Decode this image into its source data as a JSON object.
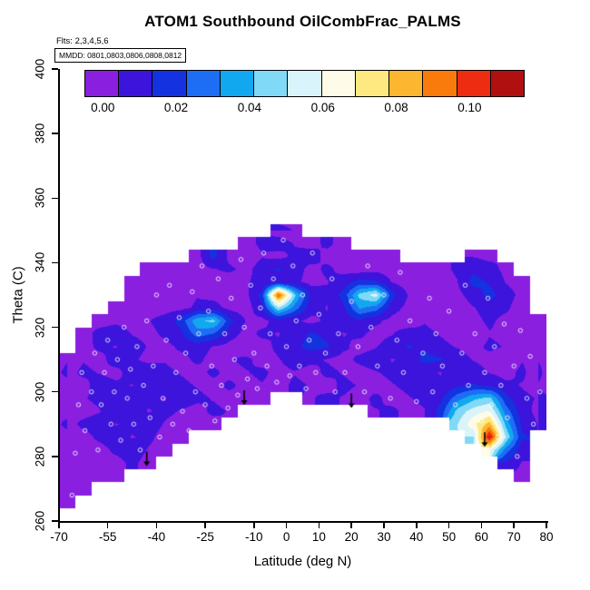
{
  "title": "ATOM1 Southbound OilCombFrac_PALMS",
  "annotations": {
    "flights": "Flts: 2,3,4,5,6",
    "mmdd": "MMDD: 0801,0803,0806,0808,0812"
  },
  "colorbar": {
    "min": 0.0,
    "max": 0.11,
    "colors": [
      "#8A1FE0",
      "#3D14DC",
      "#1432E0",
      "#1E6EF5",
      "#12A8F0",
      "#7FD9F7",
      "#D9F4FA",
      "#FEFBE8",
      "#FDE97F",
      "#FDB62F",
      "#F97B0C",
      "#EE2C12",
      "#B01010"
    ],
    "tick_labels": [
      "0.00",
      "0.02",
      "0.04",
      "0.06",
      "0.08",
      "0.10"
    ],
    "tick_values": [
      0.0,
      0.02,
      0.04,
      0.06,
      0.08,
      0.1
    ]
  },
  "axes": {
    "x": {
      "label": "Latitude (deg N)",
      "ticks": [
        -70,
        -55,
        -40,
        -25,
        -10,
        0,
        10,
        20,
        30,
        40,
        50,
        60,
        70,
        80
      ],
      "range": [
        -70,
        80
      ]
    },
    "y": {
      "label": "Theta (C)",
      "ticks": [
        260,
        280,
        300,
        320,
        340,
        360,
        380,
        400
      ],
      "range": [
        260,
        400
      ]
    }
  },
  "chart_data": {
    "type": "heatmap",
    "title": "ATOM1 Southbound OilCombFrac_PALMS",
    "xlabel": "Latitude (deg N)",
    "ylabel": "Theta (C)",
    "value_name": "OilCombFrac_PALMS",
    "value_range": [
      0.0,
      0.11
    ],
    "x_range": [
      -70,
      80
    ],
    "y_range": [
      260,
      400
    ],
    "lat_centers": [
      -67.5,
      -62.5,
      -57.5,
      -52.5,
      -47.5,
      -42.5,
      -37.5,
      -32.5,
      -27.5,
      -22.5,
      -17.5,
      -12.5,
      -7.5,
      -2.5,
      2.5,
      7.5,
      12.5,
      17.5,
      22.5,
      27.5,
      32.5,
      37.5,
      42.5,
      47.5,
      52.5,
      57.5,
      62.5,
      67.5,
      72.5,
      77.5
    ],
    "theta_centers": [
      350,
      346,
      342,
      338,
      334,
      330,
      326,
      322,
      318,
      314,
      310,
      306,
      302,
      298,
      294,
      290,
      286,
      282,
      278,
      274,
      270,
      266
    ],
    "grid": [
      [
        null,
        null,
        null,
        null,
        null,
        null,
        null,
        null,
        null,
        null,
        null,
        null,
        null,
        0.005,
        0.004,
        null,
        null,
        null,
        null,
        null,
        null,
        null,
        null,
        null,
        null,
        null,
        null,
        null,
        null,
        null
      ],
      [
        null,
        null,
        null,
        null,
        null,
        null,
        null,
        null,
        null,
        null,
        null,
        0.006,
        0.01,
        0.012,
        0.008,
        0.006,
        0.01,
        0.006,
        null,
        null,
        null,
        null,
        null,
        null,
        null,
        null,
        null,
        null,
        null,
        null
      ],
      [
        null,
        null,
        null,
        null,
        null,
        null,
        null,
        null,
        0.005,
        0.02,
        0.006,
        0.004,
        0.008,
        0.006,
        0.01,
        0.012,
        0.006,
        0.008,
        0.005,
        0.004,
        0.006,
        null,
        null,
        null,
        null,
        0.008,
        0.006,
        null,
        null,
        null
      ],
      [
        null,
        null,
        null,
        null,
        null,
        0.004,
        0.006,
        0.004,
        0.005,
        0.008,
        0.01,
        0.006,
        0.012,
        0.018,
        0.012,
        0.006,
        0.01,
        0.006,
        0.004,
        0.006,
        0.004,
        0.005,
        0.004,
        0.006,
        0.01,
        0.015,
        0.012,
        0.006,
        null,
        null
      ],
      [
        null,
        null,
        null,
        null,
        0.004,
        0.006,
        0.004,
        0.005,
        0.004,
        0.006,
        0.004,
        0.008,
        0.01,
        0.014,
        0.01,
        0.006,
        0.008,
        0.012,
        0.02,
        0.018,
        0.008,
        0.004,
        0.006,
        0.004,
        0.008,
        0.02,
        0.016,
        0.008,
        0.005,
        null
      ],
      [
        null,
        null,
        null,
        null,
        0.005,
        0.004,
        0.006,
        0.004,
        0.008,
        0.006,
        0.004,
        0.006,
        0.02,
        0.095,
        0.045,
        0.015,
        0.01,
        0.02,
        0.045,
        0.055,
        0.02,
        0.008,
        0.006,
        0.004,
        0.006,
        0.012,
        0.02,
        0.012,
        0.006,
        null
      ],
      [
        null,
        null,
        null,
        0.004,
        0.006,
        0.004,
        0.005,
        0.006,
        0.01,
        0.012,
        0.006,
        0.004,
        0.015,
        0.05,
        0.03,
        0.012,
        0.008,
        0.015,
        0.035,
        0.03,
        0.012,
        0.006,
        0.004,
        0.006,
        0.004,
        0.008,
        0.012,
        0.01,
        0.004,
        null
      ],
      [
        null,
        null,
        0.004,
        0.006,
        0.004,
        0.008,
        0.012,
        0.02,
        0.04,
        0.045,
        0.02,
        0.008,
        0.006,
        0.012,
        0.01,
        0.006,
        0.01,
        0.012,
        0.015,
        0.01,
        0.006,
        0.004,
        0.008,
        0.006,
        0.004,
        0.006,
        0.01,
        0.006,
        0.008,
        0.004
      ],
      [
        null,
        0.004,
        0.012,
        0.015,
        0.008,
        0.006,
        0.01,
        0.015,
        0.03,
        0.025,
        0.012,
        0.006,
        0.01,
        0.008,
        0.012,
        0.018,
        0.015,
        0.008,
        0.01,
        0.006,
        0.008,
        0.012,
        0.01,
        0.008,
        0.006,
        0.004,
        0.008,
        0.006,
        0.004,
        0.006
      ],
      [
        null,
        0.006,
        0.01,
        0.008,
        0.012,
        0.008,
        0.006,
        0.01,
        0.012,
        0.008,
        0.006,
        0.004,
        0.006,
        0.01,
        0.015,
        0.02,
        0.018,
        0.01,
        0.006,
        0.008,
        0.012,
        0.018,
        0.015,
        0.01,
        0.008,
        0.006,
        0.01,
        0.008,
        0.006,
        0.004
      ],
      [
        0.004,
        0.008,
        0.006,
        0.012,
        0.01,
        0.006,
        0.008,
        0.006,
        0.01,
        0.006,
        0.008,
        0.01,
        0.006,
        0.008,
        0.012,
        0.01,
        0.008,
        0.006,
        0.01,
        0.012,
        0.008,
        0.01,
        0.02,
        0.018,
        0.012,
        0.008,
        0.006,
        0.004,
        0.008,
        0.006
      ],
      [
        0.006,
        0.01,
        0.008,
        0.006,
        0.012,
        0.015,
        0.01,
        0.008,
        0.006,
        0.01,
        0.006,
        0.008,
        0.01,
        0.006,
        0.008,
        0.006,
        0.01,
        0.008,
        0.006,
        0.008,
        0.01,
        0.012,
        0.01,
        0.008,
        0.015,
        0.012,
        0.008,
        0.006,
        0.01,
        0.004
      ],
      [
        0.008,
        0.006,
        0.012,
        0.01,
        0.008,
        0.012,
        0.015,
        0.01,
        0.008,
        0.006,
        0.01,
        0.006,
        0.008,
        0.006,
        0.01,
        0.008,
        0.006,
        0.01,
        0.008,
        0.006,
        0.008,
        0.01,
        0.012,
        0.01,
        0.015,
        0.018,
        0.015,
        0.01,
        0.008,
        0.006
      ],
      [
        0.006,
        0.008,
        0.01,
        0.012,
        0.015,
        0.01,
        0.008,
        0.012,
        0.01,
        0.008,
        0.006,
        0.008,
        0.006,
        null,
        null,
        0.008,
        0.01,
        0.008,
        0.006,
        0.01,
        0.006,
        0.008,
        0.01,
        0.015,
        0.03,
        0.04,
        0.045,
        0.02,
        0.01,
        0.008
      ],
      [
        0.008,
        0.006,
        0.008,
        0.015,
        0.012,
        0.008,
        0.01,
        0.008,
        0.006,
        0.01,
        0.008,
        null,
        null,
        null,
        null,
        null,
        null,
        null,
        null,
        0.008,
        0.01,
        0.006,
        0.008,
        0.02,
        0.045,
        0.055,
        0.06,
        0.03,
        0.012,
        0.006
      ],
      [
        0.006,
        0.01,
        0.012,
        0.008,
        0.01,
        0.012,
        0.008,
        0.006,
        0.008,
        0.006,
        null,
        null,
        null,
        null,
        null,
        null,
        null,
        null,
        null,
        null,
        null,
        null,
        null,
        null,
        0.05,
        0.065,
        0.08,
        0.04,
        0.015,
        0.008
      ],
      [
        0.008,
        0.006,
        0.01,
        0.012,
        0.008,
        0.01,
        0.006,
        0.008,
        null,
        null,
        null,
        null,
        null,
        null,
        null,
        null,
        null,
        null,
        null,
        null,
        null,
        null,
        null,
        null,
        null,
        0.05,
        0.105,
        0.05,
        0.018,
        null
      ],
      [
        0.006,
        0.008,
        0.006,
        0.01,
        0.012,
        0.008,
        0.006,
        null,
        null,
        null,
        null,
        null,
        null,
        null,
        null,
        null,
        null,
        null,
        null,
        null,
        null,
        null,
        null,
        null,
        null,
        null,
        0.06,
        0.03,
        0.012,
        null
      ],
      [
        0.008,
        0.006,
        0.008,
        0.006,
        0.01,
        0.006,
        null,
        null,
        null,
        null,
        null,
        null,
        null,
        null,
        null,
        null,
        null,
        null,
        null,
        null,
        null,
        null,
        null,
        null,
        null,
        null,
        null,
        0.015,
        0.008,
        null
      ],
      [
        0.006,
        0.008,
        0.006,
        0.008,
        null,
        null,
        null,
        null,
        null,
        null,
        null,
        null,
        null,
        null,
        null,
        null,
        null,
        null,
        null,
        null,
        null,
        null,
        null,
        null,
        null,
        null,
        null,
        null,
        0.006,
        null
      ],
      [
        0.008,
        0.006,
        null,
        null,
        null,
        null,
        null,
        null,
        null,
        null,
        null,
        null,
        null,
        null,
        null,
        null,
        null,
        null,
        null,
        null,
        null,
        null,
        null,
        null,
        null,
        null,
        null,
        null,
        null,
        null
      ],
      [
        0.006,
        null,
        null,
        null,
        null,
        null,
        null,
        null,
        null,
        null,
        null,
        null,
        null,
        null,
        null,
        null,
        null,
        null,
        null,
        null,
        null,
        null,
        null,
        null,
        null,
        null,
        null,
        null,
        null,
        null
      ]
    ],
    "arrows": [
      {
        "lat": -43,
        "theta": 277
      },
      {
        "lat": -13,
        "theta": 296
      },
      {
        "lat": 20,
        "theta": 295
      },
      {
        "lat": 61,
        "theta": 283
      }
    ],
    "sample_points": [
      [
        -66,
        268
      ],
      [
        -65,
        281
      ],
      [
        -64,
        296
      ],
      [
        -63,
        306
      ],
      [
        -62,
        288
      ],
      [
        -60,
        300
      ],
      [
        -59,
        312
      ],
      [
        -58,
        282
      ],
      [
        -57,
        296
      ],
      [
        -56,
        306
      ],
      [
        -55,
        316
      ],
      [
        -54,
        290
      ],
      [
        -53,
        300
      ],
      [
        -52,
        310
      ],
      [
        -51,
        285
      ],
      [
        -50,
        320
      ],
      [
        -49,
        298
      ],
      [
        -48,
        307
      ],
      [
        -47,
        290
      ],
      [
        -46,
        314
      ],
      [
        -45,
        282
      ],
      [
        -44,
        302
      ],
      [
        -43,
        322
      ],
      [
        -42,
        292
      ],
      [
        -41,
        308
      ],
      [
        -40,
        330
      ],
      [
        -39,
        286
      ],
      [
        -38,
        298
      ],
      [
        -37,
        316
      ],
      [
        -36,
        333
      ],
      [
        -35,
        290
      ],
      [
        -34,
        306
      ],
      [
        -33,
        323
      ],
      [
        -32,
        294
      ],
      [
        -31,
        312
      ],
      [
        -30,
        288
      ],
      [
        -29,
        331
      ],
      [
        -28,
        300
      ],
      [
        -27,
        318
      ],
      [
        -26,
        339
      ],
      [
        -25,
        296
      ],
      [
        -24,
        325
      ],
      [
        -23,
        308
      ],
      [
        -22,
        291
      ],
      [
        -21,
        335
      ],
      [
        -20,
        302
      ],
      [
        -19,
        318
      ],
      [
        -18,
        295
      ],
      [
        -17,
        329
      ],
      [
        -16,
        310
      ],
      [
        -15,
        299
      ],
      [
        -14,
        341
      ],
      [
        -13,
        320
      ],
      [
        -12,
        304
      ],
      [
        -11,
        333
      ],
      [
        -10,
        312
      ],
      [
        -9,
        301
      ],
      [
        -8,
        326
      ],
      [
        -7,
        343
      ],
      [
        -6,
        308
      ],
      [
        -5,
        318
      ],
      [
        -4,
        335
      ],
      [
        -3,
        303
      ],
      [
        -2,
        328
      ],
      [
        -1,
        347
      ],
      [
        0,
        314
      ],
      [
        1,
        305
      ],
      [
        2,
        339
      ],
      [
        3,
        322
      ],
      [
        4,
        308
      ],
      [
        5,
        330
      ],
      [
        6,
        301
      ],
      [
        7,
        316
      ],
      [
        8,
        343
      ],
      [
        9,
        306
      ],
      [
        10,
        324
      ],
      [
        12,
        312
      ],
      [
        14,
        335
      ],
      [
        15,
        300
      ],
      [
        16,
        318
      ],
      [
        18,
        306
      ],
      [
        20,
        328
      ],
      [
        22,
        314
      ],
      [
        24,
        300
      ],
      [
        25,
        339
      ],
      [
        26,
        320
      ],
      [
        28,
        308
      ],
      [
        30,
        330
      ],
      [
        32,
        298
      ],
      [
        34,
        316
      ],
      [
        35,
        337
      ],
      [
        36,
        306
      ],
      [
        38,
        322
      ],
      [
        40,
        297
      ],
      [
        42,
        312
      ],
      [
        44,
        329
      ],
      [
        45,
        300
      ],
      [
        46,
        318
      ],
      [
        48,
        308
      ],
      [
        50,
        325
      ],
      [
        52,
        296
      ],
      [
        54,
        312
      ],
      [
        55,
        333
      ],
      [
        56,
        302
      ],
      [
        58,
        318
      ],
      [
        60,
        291
      ],
      [
        61,
        306
      ],
      [
        62,
        329
      ],
      [
        63,
        296
      ],
      [
        64,
        314
      ],
      [
        65,
        286
      ],
      [
        66,
        302
      ],
      [
        67,
        321
      ],
      [
        68,
        292
      ],
      [
        70,
        308
      ],
      [
        71,
        280
      ],
      [
        72,
        319
      ],
      [
        74,
        298
      ],
      [
        75,
        311
      ],
      [
        76,
        290
      ],
      [
        78,
        300
      ]
    ]
  }
}
